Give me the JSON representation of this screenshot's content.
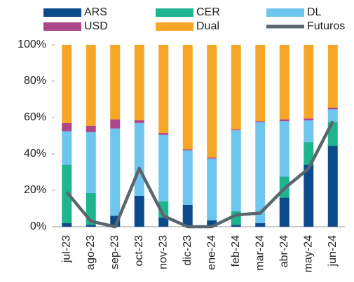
{
  "chart_data": {
    "type": "bar",
    "stacked": true,
    "categories": [
      "jul-23",
      "ago-23",
      "sep-23",
      "oct-23",
      "nov-23",
      "dic-23",
      "ene-24",
      "feb-24",
      "mar-24",
      "abr-24",
      "may-24",
      "jun-24"
    ],
    "series": [
      {
        "name": "ARS",
        "color": "#0b4a8b",
        "values": [
          2,
          1,
          6,
          17,
          5,
          12,
          3.5,
          1,
          2,
          16,
          34,
          44.5
        ]
      },
      {
        "name": "CER",
        "color": "#1db48e",
        "values": [
          32,
          17.5,
          0,
          0,
          9,
          0,
          0,
          7.5,
          0,
          11.5,
          12.5,
          13
        ]
      },
      {
        "name": "DL",
        "color": "#6ec5ee",
        "values": [
          18.5,
          33.5,
          48,
          40,
          36.5,
          30,
          34,
          44.5,
          55.5,
          30.5,
          12,
          7
        ]
      },
      {
        "name": "USD",
        "color": "#ad4589",
        "values": [
          4.5,
          3.5,
          5,
          1.5,
          1,
          0.5,
          0.5,
          0.5,
          0.5,
          1,
          1,
          1
        ]
      },
      {
        "name": "Dual",
        "color": "#f7a727",
        "values": [
          43,
          44.5,
          41,
          41.5,
          48.5,
          57.5,
          62,
          46.5,
          42,
          41,
          40.5,
          34.5
        ]
      },
      {
        "name": "Futuros",
        "color": "#59666e",
        "type": "line",
        "values": [
          19,
          3,
          0,
          32,
          6,
          0,
          0,
          6.5,
          7.5,
          21,
          32,
          58
        ]
      }
    ],
    "ylim": [
      0,
      100
    ],
    "yticks": [
      {
        "value": 0,
        "label": "0%"
      },
      {
        "value": 20,
        "label": "20%"
      },
      {
        "value": 40,
        "label": "40%"
      },
      {
        "value": 60,
        "label": "60%"
      },
      {
        "value": 80,
        "label": "80%"
      },
      {
        "value": 100,
        "label": "100%"
      }
    ],
    "grid": false,
    "legend": "top"
  }
}
